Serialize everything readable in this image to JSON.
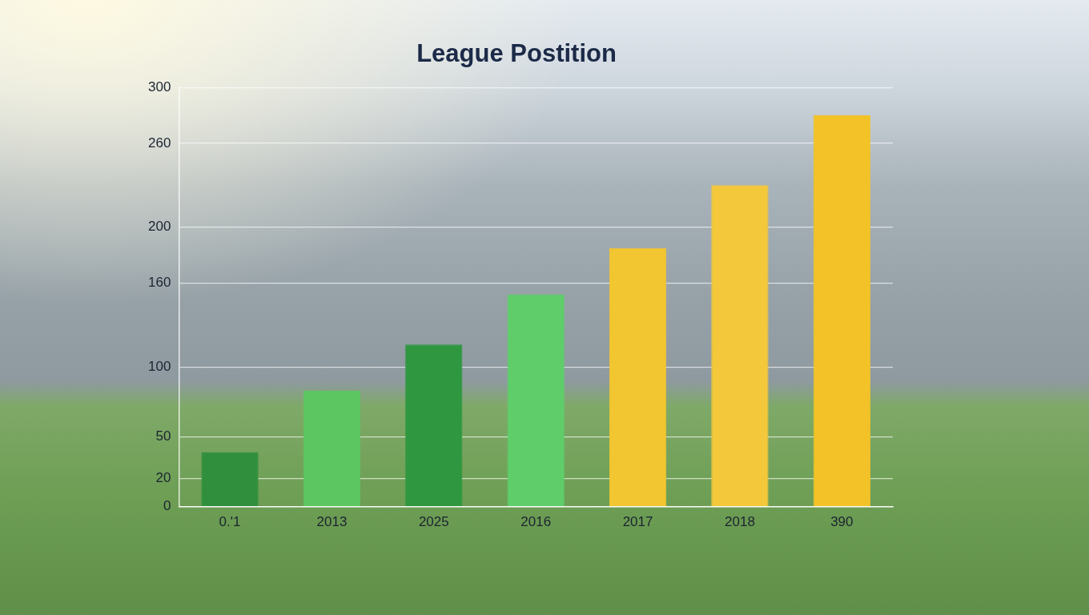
{
  "chart_data": {
    "type": "bar",
    "title": "League Postition",
    "categories": [
      "0.'1",
      "2013",
      "2025",
      "2016",
      "2017",
      "2018",
      "390"
    ],
    "values": [
      39,
      83,
      116,
      152,
      185,
      230,
      280
    ],
    "colors": [
      "#2f8f3c",
      "#5cc760",
      "#2e973f",
      "#5fce6a",
      "#f2c630",
      "#f3c83a",
      "#f2c228"
    ],
    "ylim": [
      0,
      300
    ],
    "yticks": [
      0,
      20,
      50,
      100,
      160,
      200,
      260,
      300
    ],
    "grid": true
  }
}
